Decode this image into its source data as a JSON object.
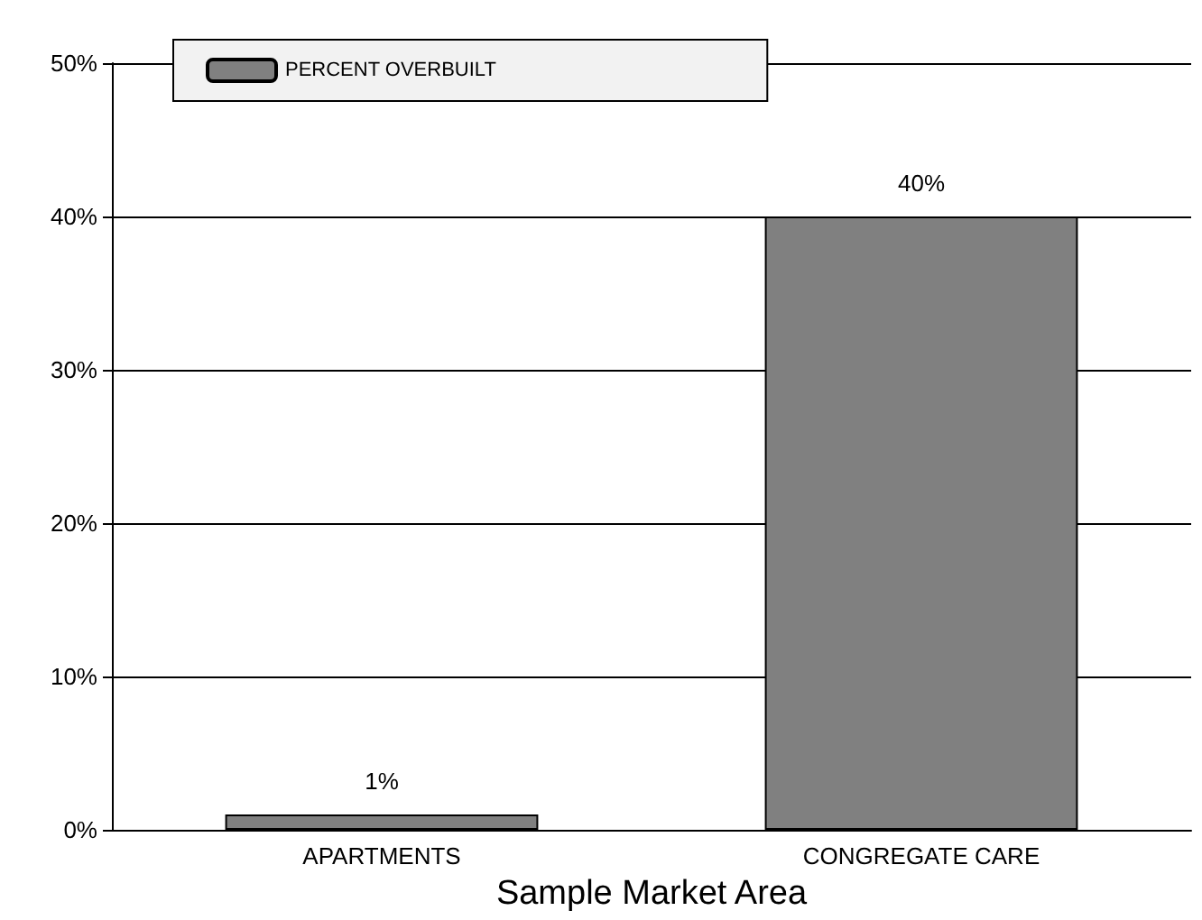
{
  "chart_data": {
    "type": "bar",
    "xlabel": "Sample Market Area",
    "categories": [
      "APARTMENTS",
      "CONGREGATE CARE"
    ],
    "series": [
      {
        "name": "PERCENT OVERBUILT",
        "color": "#808080",
        "values": [
          1,
          40
        ],
        "value_labels": [
          "1%",
          "40%"
        ]
      }
    ],
    "ylim": [
      0,
      50
    ],
    "yticks": [
      {
        "value": 0,
        "label": "0%"
      },
      {
        "value": 10,
        "label": "10%"
      },
      {
        "value": 20,
        "label": "20%"
      },
      {
        "value": 30,
        "label": "30%"
      },
      {
        "value": 40,
        "label": "40%"
      },
      {
        "value": 50,
        "label": "50%"
      }
    ],
    "grid": "y",
    "legend": "top left"
  }
}
